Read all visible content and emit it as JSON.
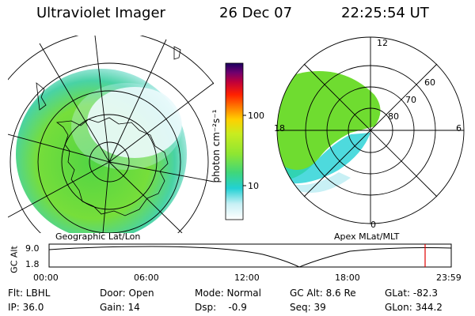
{
  "header": {
    "instrument": "Ultraviolet Imager",
    "date": "26 Dec 07",
    "time": "22:25:54 UT"
  },
  "geo_panel": {
    "label": "Geographic Lat/Lon"
  },
  "colorbar": {
    "unit_label": "photon cm⁻²s⁻¹",
    "ticks": [
      "100",
      "10"
    ],
    "scale": "log",
    "colors": [
      "#ffffff",
      "#c8f0f5",
      "#22d1d4",
      "#3fd67a",
      "#8ee632",
      "#c9ec1f",
      "#ffd000",
      "#ff7a00",
      "#ff2000",
      "#c0003a",
      "#70006e",
      "#1a0060"
    ]
  },
  "mlt_panel": {
    "label": "Apex MLat/MLT",
    "hour_labels": [
      "12",
      "18",
      "6",
      "0"
    ],
    "lat_labels": [
      "60",
      "70",
      "80"
    ]
  },
  "altitude_plot": {
    "ylabel": "GC Alt",
    "yticks": [
      "9.0",
      "1.8"
    ],
    "xticks": [
      "00:00",
      "06:00",
      "12:00",
      "18:00",
      "23:59"
    ],
    "current_time_marker_fraction": 0.935,
    "marker_color": "#e00000"
  },
  "status": {
    "flt": "Flt: LBHL",
    "ip": "IP: 36.0",
    "door": "Door: Open",
    "gain": "Gain: 14",
    "mode": "Mode: Normal",
    "dsp": "Dsp:    -0.9",
    "gcalt": "GC Alt: 8.6 Re",
    "seq": "Seq: 39",
    "glat": "GLat: -82.3",
    "glon": "GLon: 344.2"
  }
}
